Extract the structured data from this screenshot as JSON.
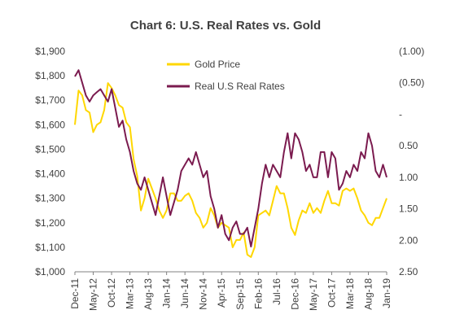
{
  "chart_data": {
    "type": "line",
    "title": "Chart 6: U.S. Real Rates vs. Gold",
    "xlabel": "",
    "y_left": {
      "label": "",
      "ylim": [
        1000,
        1900
      ],
      "ticks": [
        1000,
        1100,
        1200,
        1300,
        1400,
        1500,
        1600,
        1700,
        1800,
        1900
      ],
      "tick_labels": [
        "$1,000",
        "$1,100",
        "$1,200",
        "$1,300",
        "$1,400",
        "$1,500",
        "$1,600",
        "$1,700",
        "$1,800",
        "$1,900"
      ]
    },
    "y_right": {
      "label": "",
      "inverted": true,
      "ylim": [
        -1.0,
        2.5
      ],
      "ticks": [
        -1.0,
        -0.5,
        0,
        0.5,
        1.0,
        1.5,
        2.0,
        2.5
      ],
      "tick_labels": [
        "(1.00)",
        "(0.50)",
        "-",
        "0.50",
        "1.00",
        "1.50",
        "2.00",
        "2.50"
      ]
    },
    "x_tick_labels": [
      "Dec-11",
      "May-12",
      "Oct-12",
      "Mar-13",
      "Aug-13",
      "Jan-14",
      "Jun-14",
      "Nov-14",
      "Apr-15",
      "Sep-15",
      "Feb-16",
      "Jul-16",
      "Dec-16",
      "May-17",
      "Oct-17",
      "Mar-18",
      "Aug-18",
      "Jan-19"
    ],
    "grid": false,
    "legend_position": "top-center",
    "series": [
      {
        "name": "Gold Price",
        "axis": "left",
        "color": "#FFD700",
        "x": [
          "Dec-11",
          "Jan-12",
          "Feb-12",
          "Mar-12",
          "Apr-12",
          "May-12",
          "Jun-12",
          "Jul-12",
          "Aug-12",
          "Sep-12",
          "Oct-12",
          "Nov-12",
          "Dec-12",
          "Jan-13",
          "Feb-13",
          "Mar-13",
          "Apr-13",
          "May-13",
          "Jun-13",
          "Jul-13",
          "Aug-13",
          "Sep-13",
          "Oct-13",
          "Nov-13",
          "Dec-13",
          "Jan-14",
          "Feb-14",
          "Mar-14",
          "Apr-14",
          "May-14",
          "Jun-14",
          "Jul-14",
          "Aug-14",
          "Sep-14",
          "Oct-14",
          "Nov-14",
          "Dec-14",
          "Jan-15",
          "Feb-15",
          "Mar-15",
          "Apr-15",
          "May-15",
          "Jun-15",
          "Jul-15",
          "Aug-15",
          "Sep-15",
          "Oct-15",
          "Nov-15",
          "Dec-15",
          "Jan-16",
          "Feb-16",
          "Mar-16",
          "Apr-16",
          "May-16",
          "Jun-16",
          "Jul-16",
          "Aug-16",
          "Sep-16",
          "Oct-16",
          "Nov-16",
          "Dec-16",
          "Jan-17",
          "Feb-17",
          "Mar-17",
          "Apr-17",
          "May-17",
          "Jun-17",
          "Jul-17",
          "Aug-17",
          "Sep-17",
          "Oct-17",
          "Nov-17",
          "Dec-17",
          "Jan-18",
          "Feb-18",
          "Mar-18",
          "Apr-18",
          "May-18",
          "Jun-18",
          "Jul-18",
          "Aug-18",
          "Sep-18",
          "Oct-18",
          "Nov-18",
          "Dec-18",
          "Jan-19"
        ],
        "values": [
          1600,
          1740,
          1720,
          1660,
          1650,
          1570,
          1600,
          1610,
          1660,
          1770,
          1750,
          1720,
          1680,
          1670,
          1610,
          1590,
          1460,
          1390,
          1250,
          1300,
          1380,
          1340,
          1300,
          1250,
          1220,
          1250,
          1320,
          1320,
          1290,
          1290,
          1310,
          1320,
          1290,
          1240,
          1220,
          1180,
          1200,
          1260,
          1230,
          1180,
          1200,
          1190,
          1180,
          1100,
          1130,
          1130,
          1160,
          1070,
          1060,
          1100,
          1230,
          1240,
          1250,
          1230,
          1290,
          1350,
          1320,
          1320,
          1260,
          1180,
          1150,
          1210,
          1250,
          1240,
          1280,
          1240,
          1260,
          1240,
          1290,
          1330,
          1280,
          1280,
          1270,
          1330,
          1340,
          1330,
          1340,
          1300,
          1250,
          1230,
          1200,
          1190,
          1220,
          1220,
          1260,
          1300
        ]
      },
      {
        "name": "Real U.S Real Rates",
        "axis": "right",
        "color": "#7B1B4F",
        "x": [
          "Dec-11",
          "Jan-12",
          "Feb-12",
          "Mar-12",
          "Apr-12",
          "May-12",
          "Jun-12",
          "Jul-12",
          "Aug-12",
          "Sep-12",
          "Oct-12",
          "Nov-12",
          "Dec-12",
          "Jan-13",
          "Feb-13",
          "Mar-13",
          "Apr-13",
          "May-13",
          "Jun-13",
          "Jul-13",
          "Aug-13",
          "Sep-13",
          "Oct-13",
          "Nov-13",
          "Dec-13",
          "Jan-14",
          "Feb-14",
          "Mar-14",
          "Apr-14",
          "May-14",
          "Jun-14",
          "Jul-14",
          "Aug-14",
          "Sep-14",
          "Oct-14",
          "Nov-14",
          "Dec-14",
          "Jan-15",
          "Feb-15",
          "Mar-15",
          "Apr-15",
          "May-15",
          "Jun-15",
          "Jul-15",
          "Aug-15",
          "Sep-15",
          "Oct-15",
          "Nov-15",
          "Dec-15",
          "Jan-16",
          "Feb-16",
          "Mar-16",
          "Apr-16",
          "May-16",
          "Jun-16",
          "Jul-16",
          "Aug-16",
          "Sep-16",
          "Oct-16",
          "Nov-16",
          "Dec-16",
          "Jan-17",
          "Feb-17",
          "Mar-17",
          "Apr-17",
          "May-17",
          "Jun-17",
          "Jul-17",
          "Aug-17",
          "Sep-17",
          "Oct-17",
          "Nov-17",
          "Dec-17",
          "Jan-18",
          "Feb-18",
          "Mar-18",
          "Apr-18",
          "May-18",
          "Jun-18",
          "Jul-18",
          "Aug-18",
          "Sep-18",
          "Oct-18",
          "Nov-18",
          "Dec-18",
          "Jan-19"
        ],
        "values": [
          -0.6,
          -0.7,
          -0.5,
          -0.3,
          -0.2,
          -0.3,
          -0.35,
          -0.4,
          -0.3,
          -0.2,
          -0.4,
          -0.1,
          0.2,
          0.1,
          0.4,
          0.6,
          0.9,
          1.1,
          1.2,
          1.0,
          1.2,
          1.4,
          1.6,
          1.3,
          1.0,
          1.3,
          1.6,
          1.4,
          1.2,
          0.9,
          0.8,
          0.7,
          0.8,
          0.6,
          0.8,
          1.0,
          0.9,
          1.3,
          1.5,
          1.8,
          1.6,
          1.9,
          2.0,
          1.8,
          1.7,
          1.9,
          1.9,
          1.8,
          2.1,
          1.8,
          1.5,
          1.1,
          0.8,
          1.0,
          0.8,
          0.9,
          1.0,
          0.6,
          0.3,
          0.7,
          0.3,
          0.4,
          0.6,
          0.9,
          0.8,
          1.0,
          1.0,
          0.6,
          0.6,
          1.0,
          0.6,
          0.7,
          1.2,
          1.1,
          0.9,
          1.0,
          0.8,
          0.9,
          0.6,
          0.7,
          0.3,
          0.5,
          0.9,
          1.0,
          0.8,
          1.0
        ]
      }
    ]
  }
}
